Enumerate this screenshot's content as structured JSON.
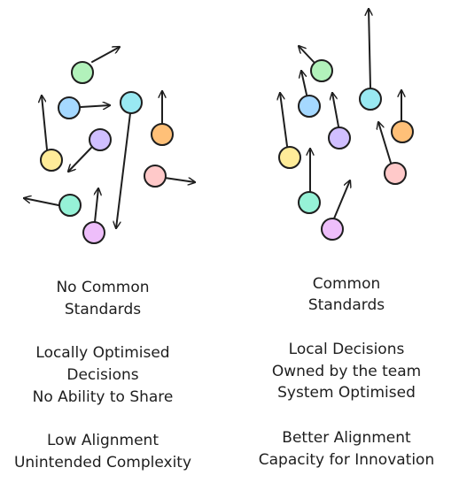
{
  "left": {
    "standards": [
      "No Common",
      "Standards"
    ],
    "decisions": [
      "Locally Optimised",
      "Decisions",
      "No Ability to Share"
    ],
    "outcome": [
      "Low Alignment",
      "Unintended Complexity"
    ],
    "nodes": [
      {
        "name": "green",
        "fill": "#b2f2bb"
      },
      {
        "name": "blue",
        "fill": "#a5d8ff"
      },
      {
        "name": "cyan",
        "fill": "#99e9f2"
      },
      {
        "name": "orange",
        "fill": "#ffc078"
      },
      {
        "name": "purple",
        "fill": "#d0bfff"
      },
      {
        "name": "yellow",
        "fill": "#ffec99"
      },
      {
        "name": "pink",
        "fill": "#ffc9c9"
      },
      {
        "name": "teal",
        "fill": "#96f2d7"
      },
      {
        "name": "violet",
        "fill": "#eebefa"
      }
    ]
  },
  "right": {
    "standards": [
      "Common",
      "Standards"
    ],
    "decisions": [
      "Local Decisions",
      "Owned by the team",
      "System Optimised"
    ],
    "outcome": [
      "Better Alignment",
      "Capacity for Innovation"
    ]
  },
  "colors": {
    "stroke": "#1e1e1e",
    "green": "#b2f2bb",
    "blue": "#a5d8ff",
    "cyan": "#99e9f2",
    "orange": "#ffc078",
    "purple": "#d0bfff",
    "yellow": "#ffec99",
    "pink": "#ffc9c9",
    "teal": "#96f2d7",
    "violet": "#eebefa"
  }
}
